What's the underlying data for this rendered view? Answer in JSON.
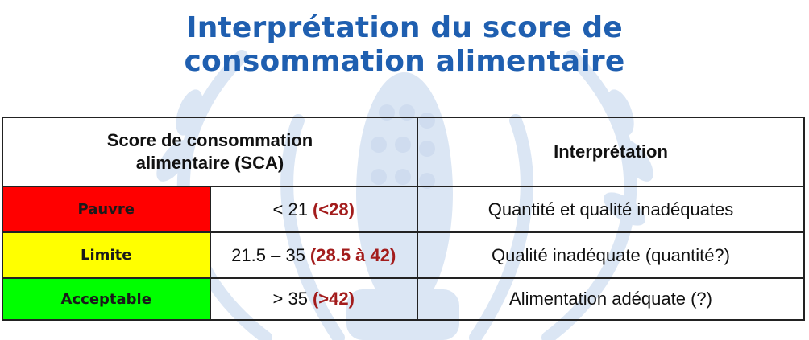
{
  "title": {
    "line1": "Interprétation du score de",
    "line2": "consommation alimentaire"
  },
  "table": {
    "header_left_line1": "Score de consommation",
    "header_left_line2": "alimentaire (SCA)",
    "header_right": "Interprétation",
    "rows": [
      {
        "level": "Pauvre",
        "color": "#ff0000",
        "range": "< 21",
        "alt_range": "(<28)",
        "interpretation": "Quantité et qualité inadéquates"
      },
      {
        "level": "Limite",
        "color": "#ffff00",
        "range": "21.5 – 35",
        "alt_range": "(28.5 à 42)",
        "interpretation": "Qualité inadéquate (quantité?)"
      },
      {
        "level": "Acceptable",
        "color": "#00ff00",
        "range": "> 35",
        "alt_range": "(>42)",
        "interpretation": "Alimentation adéquate (?)"
      }
    ],
    "alt_range_color": "#a31c1c"
  },
  "colors": {
    "title": "#1f5fb0",
    "watermark": "#dbe6f4"
  }
}
